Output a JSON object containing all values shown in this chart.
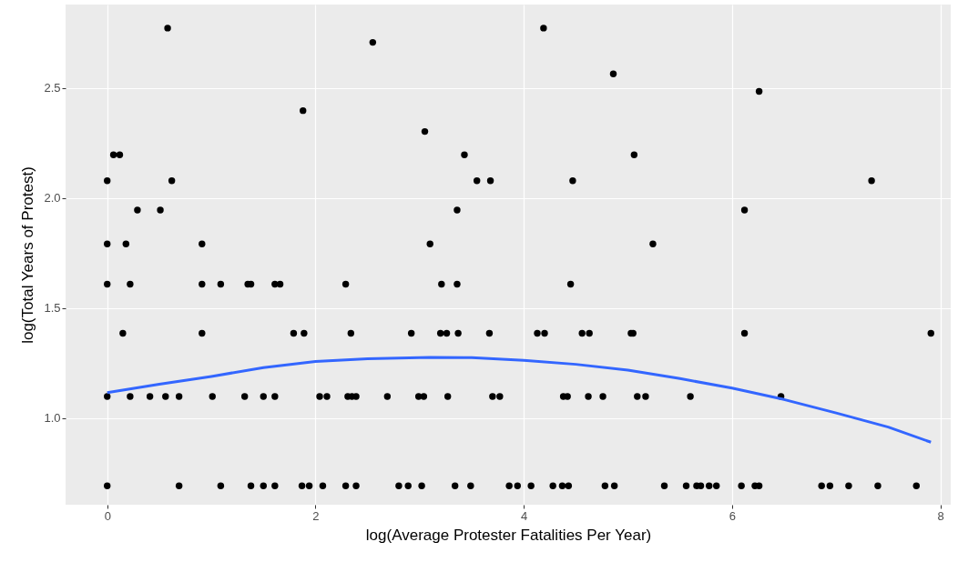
{
  "chart_data": {
    "type": "scatter",
    "xlabel": "log(Average Protester Fatalities Per Year)",
    "ylabel": "log(Total Years of Protest)",
    "xlim": [
      -0.4,
      8.1
    ],
    "ylim": [
      0.607,
      2.88
    ],
    "xticks": [
      0,
      2,
      4,
      6,
      8
    ],
    "yticks": [
      {
        "value": 1,
        "label": "1.0"
      },
      1.5,
      {
        "value": 2,
        "label": "2.0"
      },
      2.5
    ],
    "grid": true,
    "series": [
      {
        "marker": "circle",
        "color": "#000000",
        "x": [
          0.58,
          4.19,
          2.55,
          4.86,
          6.26,
          1.88,
          0.06,
          0.12,
          3.05,
          3.43,
          5.06,
          0,
          0.62,
          3.55,
          3.68,
          4.47,
          7.34,
          0.29,
          0.51,
          3.36,
          6.12,
          0,
          0.18,
          0.91,
          3.1,
          5.24,
          0,
          0.22,
          0.91,
          1.09,
          1.35,
          1.38,
          1.61,
          1.66,
          2.29,
          3.21,
          3.36,
          4.45,
          0.15,
          0.91,
          1.79,
          1.89,
          2.34,
          2.92,
          3.2,
          3.26,
          3.37,
          3.67,
          4.13,
          4.2,
          4.56,
          4.63,
          5.03,
          5.05,
          6.12,
          7.91,
          0,
          0.22,
          0.41,
          0.56,
          0.69,
          1.01,
          1.32,
          1.5,
          1.61,
          2.04,
          2.11,
          2.31,
          2.35,
          2.39,
          2.69,
          2.99,
          3.04,
          3.27,
          3.7,
          3.77,
          4.38,
          4.42,
          4.62,
          4.76,
          5.09,
          5.17,
          5.6,
          6.47,
          0,
          0.69,
          1.09,
          1.38,
          1.5,
          1.61,
          1.87,
          1.94,
          2.07,
          2.29,
          2.39,
          2.8,
          2.89,
          3.02,
          3.34,
          3.49,
          3.86,
          3.94,
          4.07,
          4.28,
          4.37,
          4.43,
          4.78,
          4.87,
          5.35,
          5.56,
          5.66,
          5.7,
          5.78,
          5.85,
          6.09,
          6.22,
          6.26,
          6.86,
          6.94,
          7.12,
          7.4,
          7.77
        ],
        "values": [
          2.773,
          2.773,
          2.708,
          2.565,
          2.485,
          2.398,
          2.197,
          2.197,
          2.303,
          2.197,
          2.197,
          2.079,
          2.079,
          2.079,
          2.079,
          2.079,
          2.079,
          1.946,
          1.946,
          1.946,
          1.946,
          1.792,
          1.792,
          1.792,
          1.792,
          1.792,
          1.609,
          1.609,
          1.609,
          1.609,
          1.609,
          1.609,
          1.609,
          1.609,
          1.609,
          1.609,
          1.609,
          1.609,
          1.386,
          1.386,
          1.386,
          1.386,
          1.386,
          1.386,
          1.386,
          1.386,
          1.386,
          1.386,
          1.386,
          1.386,
          1.386,
          1.386,
          1.386,
          1.386,
          1.386,
          1.386,
          1.099,
          1.099,
          1.099,
          1.099,
          1.099,
          1.099,
          1.099,
          1.099,
          1.099,
          1.099,
          1.099,
          1.099,
          1.099,
          1.099,
          1.099,
          1.099,
          1.099,
          1.099,
          1.099,
          1.099,
          1.099,
          1.099,
          1.099,
          1.099,
          1.099,
          1.099,
          1.099,
          1.099,
          0.693,
          0.693,
          0.693,
          0.693,
          0.693,
          0.693,
          0.693,
          0.693,
          0.693,
          0.693,
          0.693,
          0.693,
          0.693,
          0.693,
          0.693,
          0.693,
          0.693,
          0.693,
          0.693,
          0.693,
          0.693,
          0.693,
          0.693,
          0.693,
          0.693,
          0.693,
          0.693,
          0.693,
          0.693,
          0.693,
          0.693,
          0.693,
          0.693,
          0.693,
          0.693,
          0.693,
          0.693,
          0.693
        ]
      },
      {
        "type": "line",
        "color": "#3366ff",
        "line_style": "solid",
        "x": [
          0,
          0.5,
          1,
          1.5,
          2,
          2.5,
          3.1,
          3.5,
          4,
          4.5,
          5,
          5.5,
          6,
          6.5,
          7,
          7.5,
          7.91
        ],
        "values": [
          1.116,
          1.155,
          1.19,
          1.23,
          1.258,
          1.27,
          1.276,
          1.275,
          1.263,
          1.245,
          1.219,
          1.18,
          1.137,
          1.085,
          1.024,
          0.96,
          0.891
        ]
      }
    ]
  }
}
